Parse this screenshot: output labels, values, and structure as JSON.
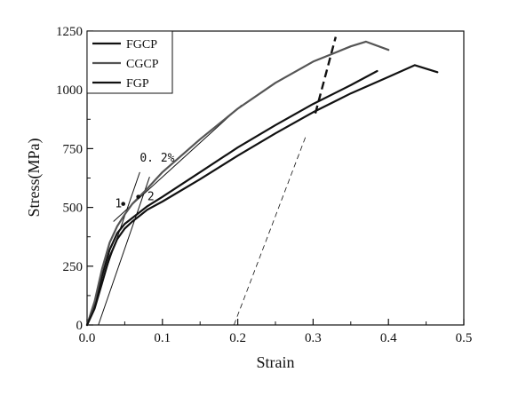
{
  "chart_data": {
    "type": "line",
    "xlabel": "Strain",
    "ylabel": "Stress(MPa)",
    "xlim": [
      0.0,
      0.5
    ],
    "ylim": [
      0,
      1250
    ],
    "x_ticks": [
      0.0,
      0.1,
      0.2,
      0.3,
      0.4,
      0.5
    ],
    "x_tick_labels": [
      "0.0",
      "0.1",
      "0.2",
      "0.3",
      "0.4",
      "0.5"
    ],
    "y_ticks": [
      0,
      250,
      500,
      750,
      1000,
      1250
    ],
    "y_tick_labels": [
      "0",
      "250",
      "500",
      "750",
      "1000",
      "1250"
    ],
    "grid": false,
    "legend_position": "top-left",
    "series": [
      {
        "name": "FGCP",
        "color": "#111111",
        "x": [
          0.0,
          0.01,
          0.02,
          0.03,
          0.04,
          0.05,
          0.06,
          0.07,
          0.08,
          0.1,
          0.15,
          0.2,
          0.25,
          0.3,
          0.35,
          0.385
        ],
        "y": [
          0,
          90,
          210,
          320,
          390,
          430,
          455,
          480,
          505,
          545,
          650,
          755,
          850,
          940,
          1020,
          1080
        ]
      },
      {
        "name": "CGCP",
        "color": "#555555",
        "x": [
          0.0,
          0.01,
          0.02,
          0.03,
          0.04,
          0.05,
          0.06,
          0.08,
          0.1,
          0.15,
          0.2,
          0.25,
          0.3,
          0.35,
          0.37,
          0.4
        ],
        "y": [
          0,
          100,
          240,
          350,
          420,
          470,
          515,
          580,
          650,
          790,
          920,
          1030,
          1120,
          1185,
          1205,
          1170
        ]
      },
      {
        "name": "FGP",
        "color": "#111111",
        "x": [
          0.0,
          0.01,
          0.02,
          0.03,
          0.04,
          0.05,
          0.06,
          0.07,
          0.08,
          0.1,
          0.15,
          0.2,
          0.25,
          0.3,
          0.35,
          0.4,
          0.435,
          0.465
        ],
        "y": [
          0,
          70,
          180,
          290,
          365,
          410,
          440,
          465,
          490,
          525,
          620,
          720,
          815,
          905,
          985,
          1055,
          1105,
          1075
        ]
      }
    ],
    "guide_lines": [
      {
        "style": "solid",
        "x": [
          0.035,
          0.205
        ],
        "y": [
          440,
          935
        ]
      },
      {
        "style": "solid",
        "x": [
          0.0,
          0.07
        ],
        "y": [
          0,
          650
        ]
      },
      {
        "style": "solid",
        "x": [
          0.015,
          0.083
        ],
        "y": [
          0,
          630
        ]
      },
      {
        "style": "dashed",
        "x": [
          0.195,
          0.29
        ],
        "y": [
          0,
          800
        ]
      },
      {
        "style": "thick-dashed",
        "x": [
          0.303,
          0.33
        ],
        "y": [
          900,
          1225
        ]
      }
    ],
    "points": [
      {
        "x": 0.048,
        "y": 515
      },
      {
        "x": 0.068,
        "y": 545
      }
    ],
    "annotations": [
      {
        "text": "1",
        "x": 0.037,
        "y": 515
      },
      {
        "text": "2",
        "x": 0.08,
        "y": 545
      },
      {
        "text": "0. 2%",
        "x": 0.07,
        "y": 710
      }
    ]
  }
}
